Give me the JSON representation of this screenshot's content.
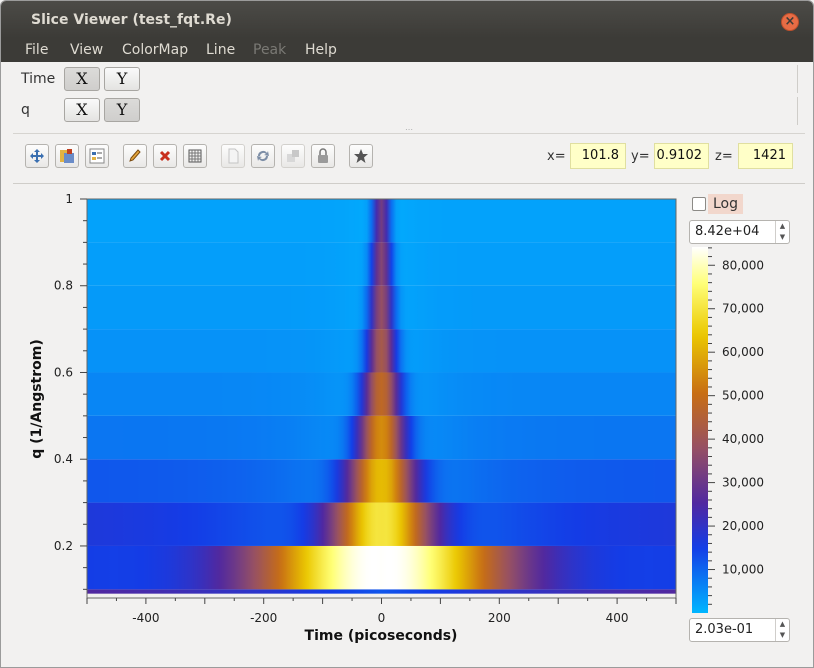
{
  "window": {
    "title": "Slice Viewer (test_fqt.Re)"
  },
  "menu": [
    "File",
    "View",
    "ColorMap",
    "Line",
    "Peak",
    "Help"
  ],
  "dimensions": [
    {
      "name": "Time",
      "x_label": "X",
      "y_label": "Y",
      "active": "X"
    },
    {
      "name": "q",
      "x_label": "X",
      "y_label": "Y",
      "active": "Y"
    }
  ],
  "toolbar": {
    "icons": [
      "zoom-fit-icon",
      "colormap-icon",
      "peaks-overlay-icon",
      "pencil-icon",
      "close-x-icon",
      "grid-icon",
      "document-icon",
      "refresh-icon",
      "rebin-icon",
      "lock-icon",
      "star-icon"
    ]
  },
  "coords": {
    "x_label": "x=",
    "x_value": "101.8",
    "y_label": "y=",
    "y_value": "0.9102",
    "z_label": "z=",
    "z_value": "1421"
  },
  "colorbar": {
    "log_label": "Log",
    "log_checked": false,
    "max_value": "8.42e+04",
    "min_value": "2.03e-01",
    "ticks": [
      "80,000",
      "70,000",
      "60,000",
      "50,000",
      "40,000",
      "30,000",
      "20,000",
      "10,000"
    ]
  },
  "chart_data": {
    "type": "heatmap",
    "xlabel": "Time (picoseconds)",
    "ylabel": "q (1/Angstrom)",
    "xlim": [
      -500,
      500
    ],
    "ylim": [
      0.08,
      1.0
    ],
    "x_ticks": [
      "-400",
      "-200",
      "0",
      "200",
      "400"
    ],
    "y_ticks": [
      "1",
      "0.8",
      "0.6",
      "0.4",
      "0.2"
    ],
    "x_tick_values": [
      -400,
      -200,
      0,
      200,
      400
    ],
    "y_tick_values": [
      1.0,
      0.8,
      0.6,
      0.4,
      0.2
    ],
    "q_bins": [
      0.1,
      0.15,
      0.25,
      0.35,
      0.45,
      0.55,
      0.65,
      0.75,
      0.85,
      0.95
    ],
    "q_bin_edges": [
      0.09,
      0.1,
      0.2,
      0.3,
      0.4,
      0.5,
      0.6,
      0.7,
      0.8,
      0.9,
      1.0
    ],
    "peak_width_ps": [
      600,
      150,
      60,
      40,
      28,
      22,
      17,
      14,
      12,
      10
    ],
    "peak_amplitude": [
      12000,
      84000,
      70000,
      62000,
      55000,
      48000,
      42000,
      38000,
      35000,
      32000
    ],
    "background_value": [
      70000,
      22000,
      18000,
      12000,
      8000,
      6000,
      4500,
      3500,
      3000,
      2500
    ],
    "colormap": "blue-purple-orange-yellow-white",
    "zlim": [
      0.203,
      84200
    ]
  }
}
